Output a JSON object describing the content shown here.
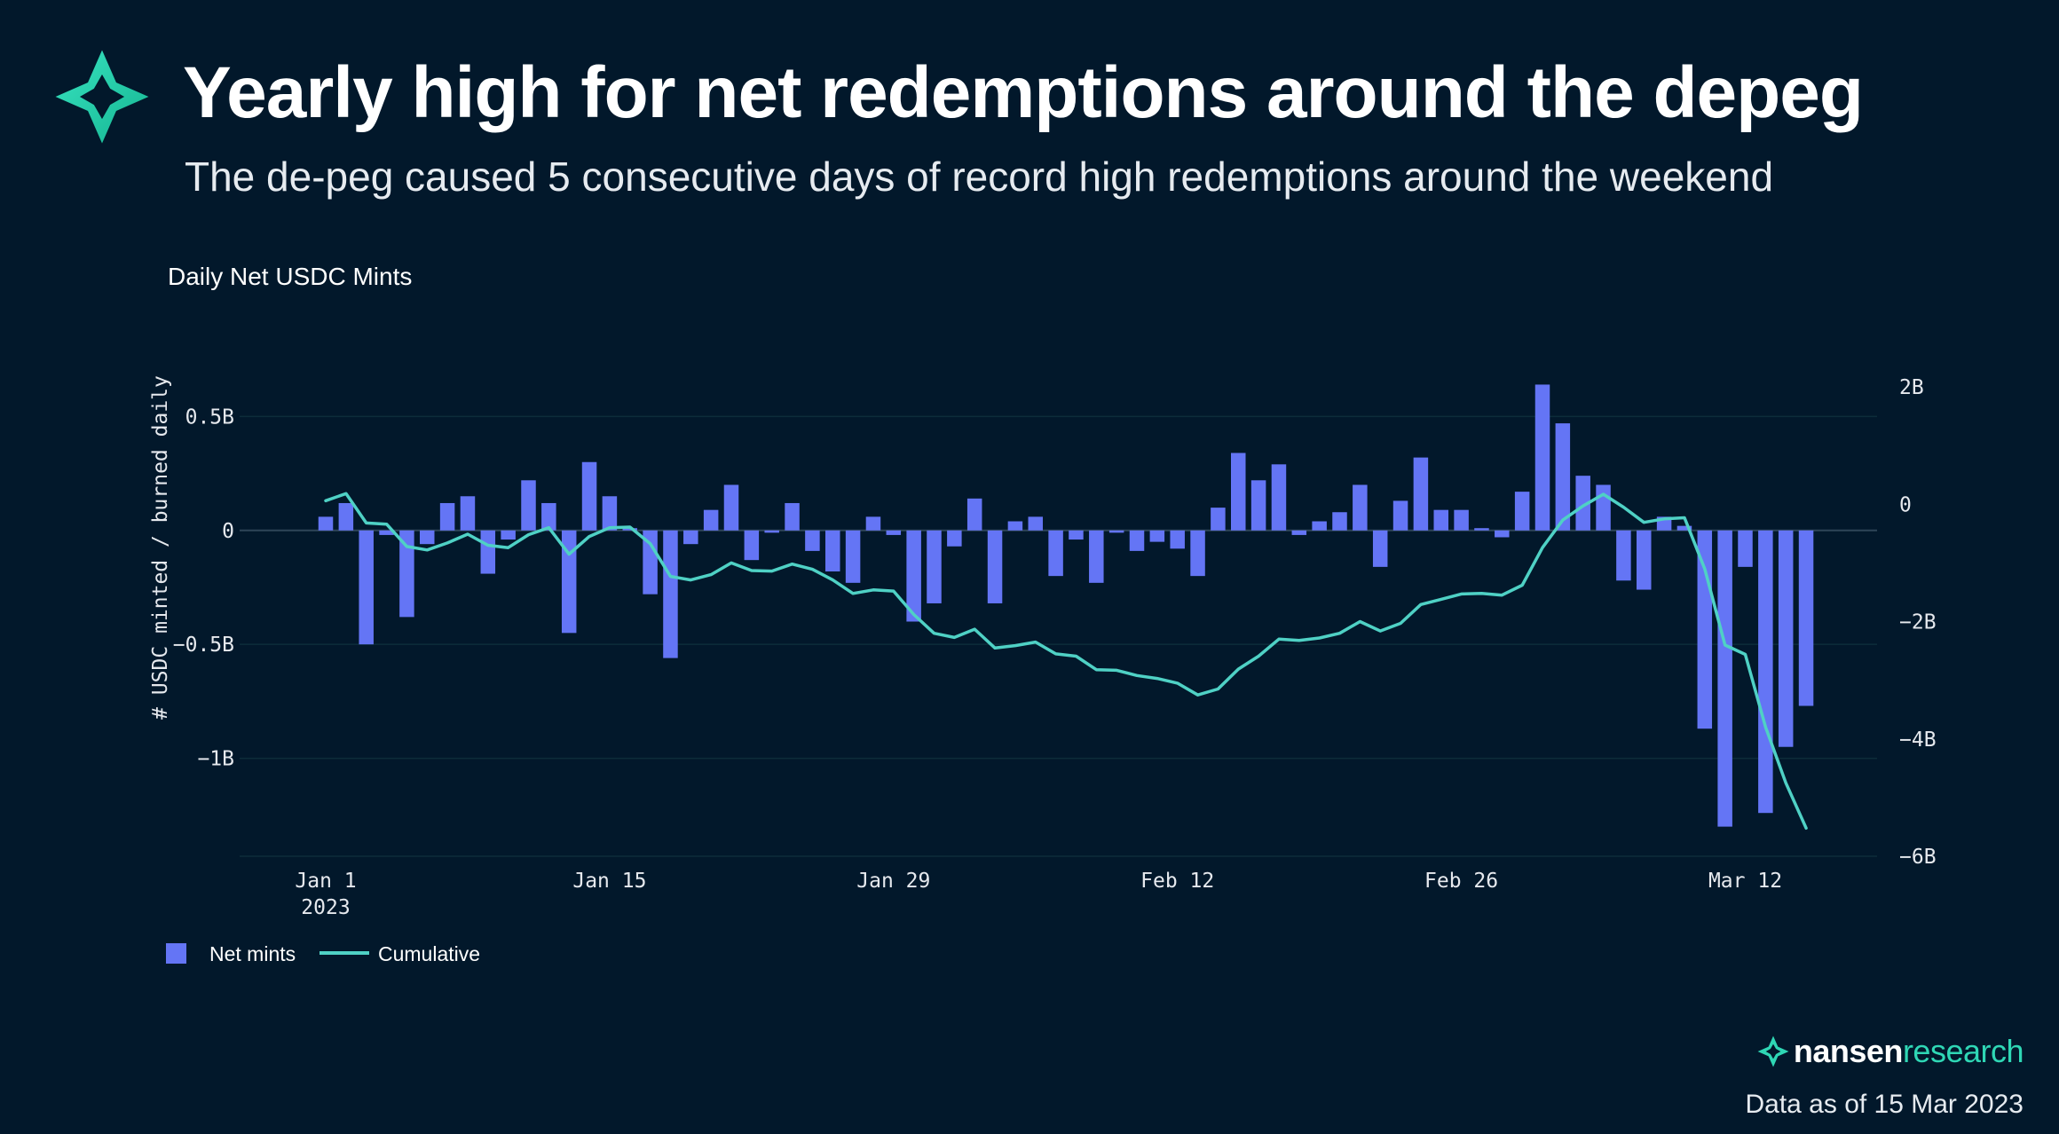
{
  "header": {
    "title": "Yearly high for net redemptions around the depeg",
    "subtitle": "The de-peg caused 5 consecutive days of record high redemptions around the weekend"
  },
  "brand": {
    "name_part1": "nansen",
    "name_part2": "research"
  },
  "footer": {
    "note": "Data as of 15 Mar 2023"
  },
  "colors": {
    "background": "#02182b",
    "bars": "#6475f5",
    "line": "#4fd1c5",
    "accent": "#2fd7b5"
  },
  "chart_data": {
    "type": "bar",
    "title": "Daily Net USDC Mints",
    "ylabel": "# USDC minted / burned daily",
    "ylim": [
      -1.43,
      0.63
    ],
    "y2lim": [
      -6.0,
      2.0
    ],
    "yticks": [
      {
        "value": 0.5,
        "label": "0.5B"
      },
      {
        "value": 0,
        "label": "0"
      },
      {
        "value": -0.5,
        "label": "−0.5B"
      },
      {
        "value": -1,
        "label": "−1B"
      }
    ],
    "y2ticks": [
      {
        "value": 2,
        "label": "2B"
      },
      {
        "value": 0,
        "label": "0"
      },
      {
        "value": -2,
        "label": "−2B"
      },
      {
        "value": -4,
        "label": "−4B"
      },
      {
        "value": -6,
        "label": "−6B"
      }
    ],
    "xticks": [
      {
        "day": 1,
        "label": "Jan 1",
        "sublabel": "2023"
      },
      {
        "day": 15,
        "label": "Jan 15",
        "sublabel": ""
      },
      {
        "day": 29,
        "label": "Jan 29",
        "sublabel": ""
      },
      {
        "day": 43,
        "label": "Feb 12",
        "sublabel": ""
      },
      {
        "day": 57,
        "label": "Feb 26",
        "sublabel": ""
      },
      {
        "day": 71,
        "label": "Mar 12",
        "sublabel": ""
      }
    ],
    "x": [
      1,
      2,
      3,
      4,
      5,
      6,
      7,
      8,
      9,
      10,
      11,
      12,
      13,
      14,
      15,
      16,
      17,
      18,
      19,
      20,
      21,
      22,
      23,
      24,
      25,
      26,
      27,
      28,
      29,
      30,
      31,
      32,
      33,
      34,
      35,
      36,
      37,
      38,
      39,
      40,
      41,
      42,
      43,
      44,
      45,
      46,
      47,
      48,
      49,
      50,
      51,
      52,
      53,
      54,
      55,
      56,
      57,
      58,
      59,
      60,
      61,
      62,
      63,
      64,
      65,
      66,
      67,
      68,
      69,
      70,
      71,
      72,
      73,
      74
    ],
    "series": [
      {
        "name": "Net mints",
        "kind": "bar",
        "axis": "left",
        "values": [
          0.06,
          0.12,
          -0.5,
          -0.02,
          -0.38,
          -0.06,
          0.12,
          0.15,
          -0.19,
          -0.04,
          0.22,
          0.12,
          -0.45,
          0.3,
          0.15,
          0.01,
          -0.28,
          -0.56,
          -0.06,
          0.09,
          0.2,
          -0.13,
          -0.01,
          0.12,
          -0.09,
          -0.18,
          -0.23,
          0.06,
          -0.02,
          -0.4,
          -0.32,
          -0.07,
          0.14,
          -0.32,
          0.04,
          0.06,
          -0.2,
          -0.04,
          -0.23,
          -0.01,
          -0.09,
          -0.05,
          -0.08,
          -0.2,
          0.1,
          0.34,
          0.22,
          0.29,
          -0.02,
          0.04,
          0.08,
          0.2,
          -0.16,
          0.13,
          0.32,
          0.09,
          0.09,
          0.01,
          -0.03,
          0.17,
          0.64,
          0.47,
          0.24,
          0.2,
          -0.22,
          -0.26,
          0.06,
          0.02,
          -0.87,
          -1.3,
          -0.16,
          -1.24,
          -0.95,
          -0.77
        ]
      },
      {
        "name": "Cumulative",
        "kind": "line",
        "axis": "right",
        "values": [
          0.06,
          0.18,
          -0.32,
          -0.34,
          -0.72,
          -0.78,
          -0.66,
          -0.51,
          -0.7,
          -0.74,
          -0.52,
          -0.4,
          -0.85,
          -0.55,
          -0.4,
          -0.39,
          -0.67,
          -1.23,
          -1.29,
          -1.2,
          -1.0,
          -1.13,
          -1.14,
          -1.02,
          -1.11,
          -1.29,
          -1.52,
          -1.46,
          -1.48,
          -1.88,
          -2.2,
          -2.27,
          -2.13,
          -2.45,
          -2.41,
          -2.35,
          -2.55,
          -2.59,
          -2.82,
          -2.83,
          -2.92,
          -2.97,
          -3.05,
          -3.25,
          -3.15,
          -2.81,
          -2.59,
          -2.3,
          -2.32,
          -2.28,
          -2.2,
          -2.0,
          -2.16,
          -2.03,
          -1.71,
          -1.62,
          -1.53,
          -1.52,
          -1.55,
          -1.38,
          -0.74,
          -0.27,
          -0.03,
          0.17,
          -0.05,
          -0.31,
          -0.25,
          -0.23,
          -1.1,
          -2.4,
          -2.56,
          -3.8,
          -4.75,
          -5.52
        ]
      }
    ],
    "legend": [
      {
        "label": "Net mints",
        "marker": "square"
      },
      {
        "label": "Cumulative",
        "marker": "line"
      }
    ],
    "legend_position": "bottom-left",
    "grid": true
  }
}
